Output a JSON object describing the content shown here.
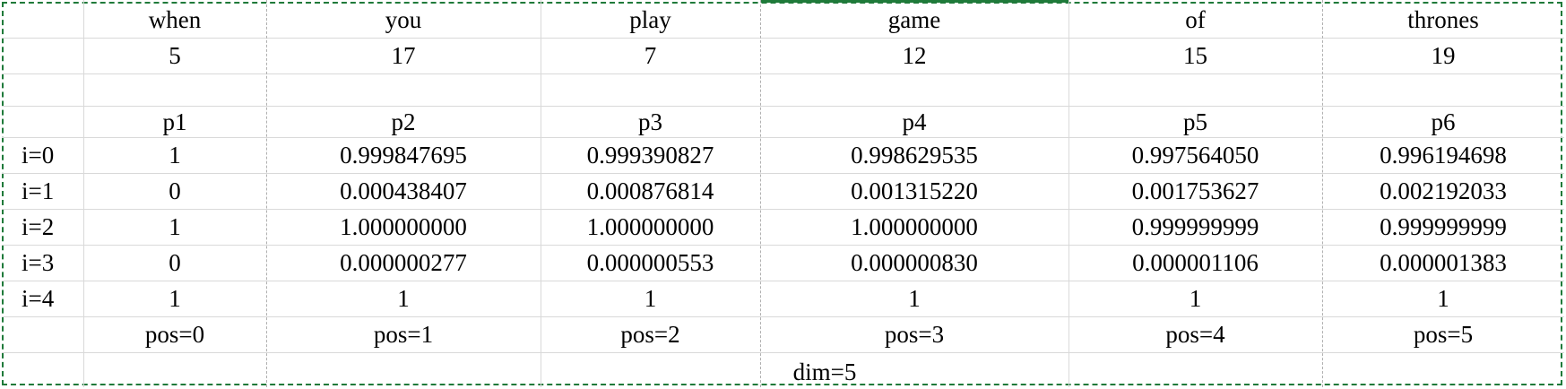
{
  "words": [
    "when",
    "you",
    "play",
    "game",
    "of",
    "thrones"
  ],
  "token_ids": [
    "5",
    "17",
    "7",
    "12",
    "15",
    "19"
  ],
  "p_labels": [
    "p1",
    "p2",
    "p3",
    "p4",
    "p5",
    "p6"
  ],
  "rows": [
    {
      "label": "i=0",
      "values": [
        "1",
        "0.999847695",
        "0.999390827",
        "0.998629535",
        "0.997564050",
        "0.996194698"
      ]
    },
    {
      "label": "i=1",
      "values": [
        "0",
        "0.000438407",
        "0.000876814",
        "0.001315220",
        "0.001753627",
        "0.002192033"
      ]
    },
    {
      "label": "i=2",
      "values": [
        "1",
        "1.000000000",
        "1.000000000",
        "1.000000000",
        "0.999999999",
        "0.999999999"
      ]
    },
    {
      "label": "i=3",
      "values": [
        "0",
        "0.000000277",
        "0.000000553",
        "0.000000830",
        "0.000001106",
        "0.000001383"
      ]
    },
    {
      "label": "i=4",
      "values": [
        "1",
        "1",
        "1",
        "1",
        "1",
        "1"
      ]
    }
  ],
  "positions": [
    "pos=0",
    "pos=1",
    "pos=2",
    "pos=3",
    "pos=4",
    "pos=5"
  ],
  "dim_label": "dim=5",
  "colors": {
    "grid": "#d9d9d9",
    "dashed": "#b0b0b0",
    "selection": "#1f7a3a"
  }
}
